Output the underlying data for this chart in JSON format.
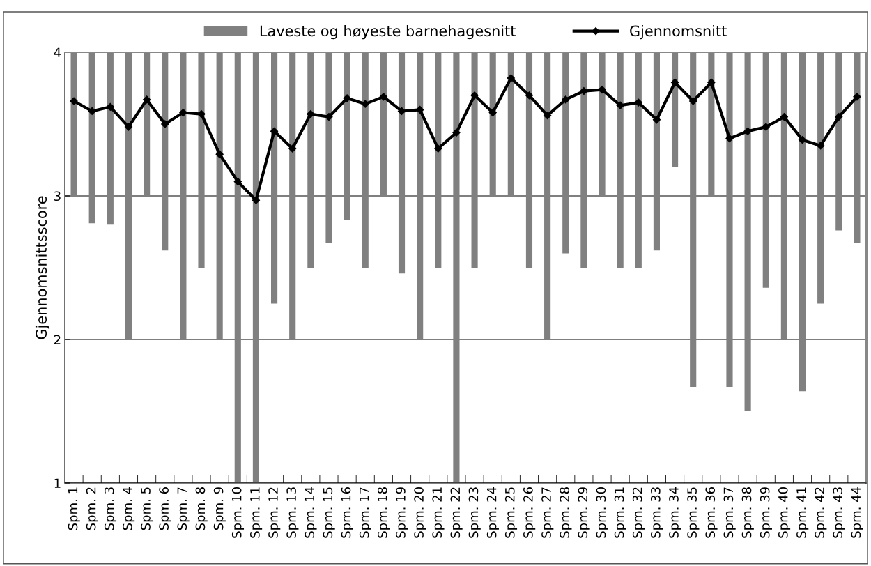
{
  "chart_data": {
    "type": "bar",
    "ylabel": "Gjennomsnittsscore",
    "categories": [
      "Spm. 1",
      "Spm. 2",
      "Spm. 3",
      "Spm. 4",
      "Spm. 5",
      "Spm. 6",
      "Spm. 7",
      "Spm. 8",
      "Spm. 9",
      "Spm. 10",
      "Spm. 11",
      "Spm. 12",
      "Spm. 13",
      "Spm. 14",
      "Spm. 15",
      "Spm. 16",
      "Spm. 17",
      "Spm. 18",
      "Spm. 19",
      "Spm. 20",
      "Spm. 21",
      "Spm. 22",
      "Spm. 23",
      "Spm. 24",
      "Spm. 25",
      "Spm. 26",
      "Spm. 27",
      "Spm. 28",
      "Spm. 29",
      "Spm. 30",
      "Spm. 31",
      "Spm. 32",
      "Spm. 33",
      "Spm. 34",
      "Spm. 35",
      "Spm. 36",
      "Spm. 37",
      "Spm. 38",
      "Spm. 39",
      "Spm. 40",
      "Spm. 41",
      "Spm. 42",
      "Spm. 43",
      "Spm. 44"
    ],
    "series": [
      {
        "name": "Laveste og høyeste barnehagesnitt",
        "color": "#808080",
        "base": [
          3.0,
          2.81,
          2.8,
          2.0,
          3.0,
          2.62,
          2.0,
          2.5,
          2.0,
          1.0,
          1.0,
          2.25,
          2.0,
          2.5,
          2.67,
          2.83,
          2.5,
          3.0,
          2.46,
          2.0,
          2.5,
          1.0,
          2.5,
          3.0,
          3.0,
          2.5,
          2.0,
          2.6,
          2.5,
          3.0,
          2.5,
          2.5,
          2.62,
          3.2,
          1.67,
          3.0,
          1.67,
          1.5,
          2.36,
          2.0,
          1.64,
          2.25,
          2.76,
          2.67
        ],
        "values": [
          1.0,
          1.19,
          1.2,
          2.0,
          1.0,
          1.38,
          2.0,
          1.5,
          2.0,
          3.0,
          3.0,
          1.75,
          2.0,
          1.5,
          1.33,
          1.17,
          1.5,
          1.0,
          1.54,
          2.0,
          1.5,
          3.0,
          1.5,
          1.0,
          1.0,
          1.5,
          2.0,
          1.4,
          1.5,
          1.0,
          1.5,
          1.5,
          1.38,
          0.8,
          2.33,
          1.0,
          2.33,
          2.5,
          1.64,
          2.0,
          2.36,
          1.75,
          1.24,
          1.33
        ]
      },
      {
        "name": "Gjennomsnitt",
        "type": "line",
        "color": "#000000",
        "marker": "diamond",
        "line_style": "solid",
        "values": [
          3.66,
          3.59,
          3.62,
          3.48,
          3.67,
          3.5,
          3.58,
          3.57,
          3.29,
          3.1,
          2.97,
          3.45,
          3.33,
          3.57,
          3.55,
          3.68,
          3.64,
          3.69,
          3.59,
          3.6,
          3.33,
          3.44,
          3.7,
          3.58,
          3.82,
          3.7,
          3.56,
          3.67,
          3.73,
          3.74,
          3.63,
          3.65,
          3.53,
          3.79,
          3.66,
          3.79,
          3.4,
          3.45,
          3.48,
          3.55,
          3.39,
          3.35,
          3.55,
          3.69
        ]
      }
    ],
    "ylim": [
      1,
      4
    ],
    "yticks": [
      1,
      2,
      3,
      4
    ],
    "grid": "y",
    "legend": "top"
  }
}
